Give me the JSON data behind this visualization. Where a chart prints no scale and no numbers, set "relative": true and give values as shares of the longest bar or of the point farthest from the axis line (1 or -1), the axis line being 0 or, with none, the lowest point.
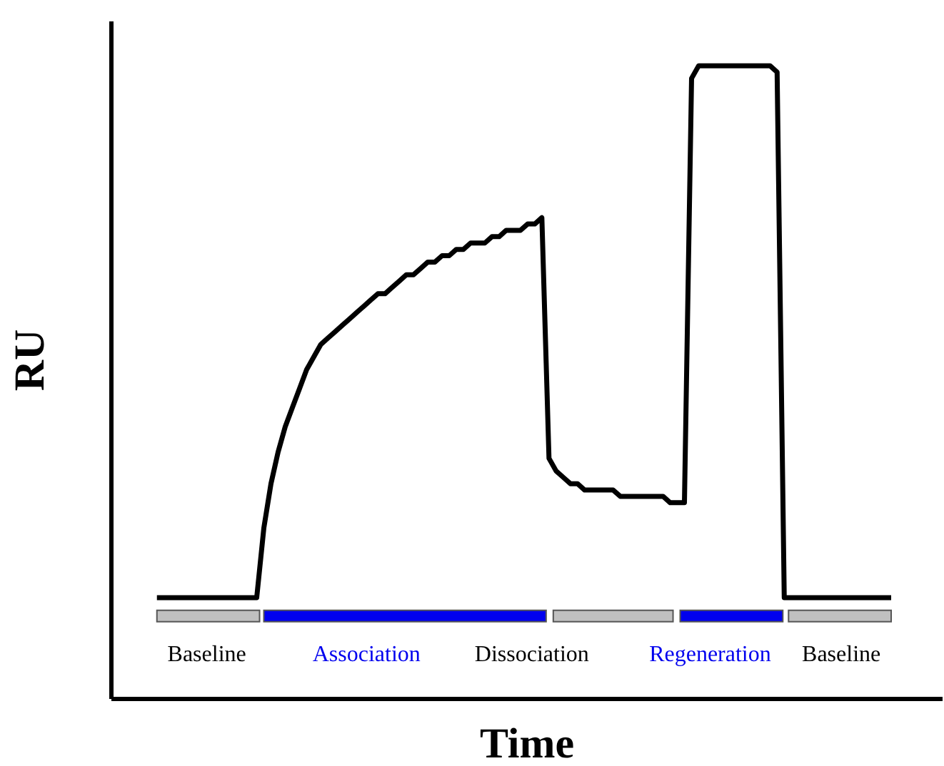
{
  "chart_data": {
    "type": "line",
    "relative": true,
    "xlabel": "Time",
    "ylabel": "RU",
    "marker": "none",
    "line_style": "solid",
    "categories": [
      null,
      null,
      null,
      null,
      null,
      null,
      null,
      null,
      null,
      null,
      null,
      null,
      null,
      null,
      null,
      null,
      null,
      null,
      null,
      null,
      null,
      null,
      null,
      null,
      null,
      null,
      null,
      null,
      null,
      null,
      null,
      null,
      null,
      null,
      null,
      null,
      null,
      null,
      null,
      null,
      null,
      null,
      null,
      null,
      null,
      null,
      null,
      null,
      null,
      null,
      null,
      null,
      null,
      null,
      null,
      null,
      null,
      null,
      null,
      null,
      null,
      null,
      null,
      null,
      null,
      null,
      null,
      null,
      null,
      null,
      null,
      null,
      null,
      null,
      null,
      null,
      null,
      null,
      null,
      null,
      null,
      null,
      null,
      null,
      null,
      null,
      null,
      null,
      null,
      null,
      null,
      null,
      null,
      null,
      null,
      null,
      null,
      null,
      null,
      null,
      null,
      null,
      null,
      null
    ],
    "series": [
      {
        "color": "#000000",
        "values": [
          0.16,
          0.16,
          0.16,
          0.16,
          0.16,
          0.16,
          0.16,
          0.16,
          0.16,
          0.16,
          0.16,
          0.16,
          0.16,
          0.16,
          0.16,
          0.27,
          0.34,
          0.39,
          0.43,
          0.46,
          0.49,
          0.52,
          0.54,
          0.56,
          0.57,
          0.58,
          0.59,
          0.6,
          0.61,
          0.62,
          0.63,
          0.64,
          0.64,
          0.65,
          0.66,
          0.67,
          0.67,
          0.68,
          0.69,
          0.69,
          0.7,
          0.7,
          0.71,
          0.71,
          0.72,
          0.72,
          0.72,
          0.73,
          0.73,
          0.74,
          0.74,
          0.74,
          0.75,
          0.75,
          0.76,
          0.38,
          0.36,
          0.35,
          0.34,
          0.34,
          0.33,
          0.33,
          0.33,
          0.33,
          0.33,
          0.32,
          0.32,
          0.32,
          0.32,
          0.32,
          0.32,
          0.32,
          0.31,
          0.31,
          0.31,
          0.98,
          1,
          1,
          1,
          1,
          1,
          1,
          1,
          1,
          1,
          1,
          1,
          0.99,
          0.16,
          0.16,
          0.16,
          0.16,
          0.16,
          0.16,
          0.16,
          0.16,
          0.16,
          0.16,
          0.16,
          0.16,
          0.16,
          0.16,
          0.16,
          0.16
        ]
      }
    ],
    "annotations": [
      "Baseline",
      "Association",
      "Dissociation",
      "Regeneration",
      "Baseline"
    ]
  }
}
